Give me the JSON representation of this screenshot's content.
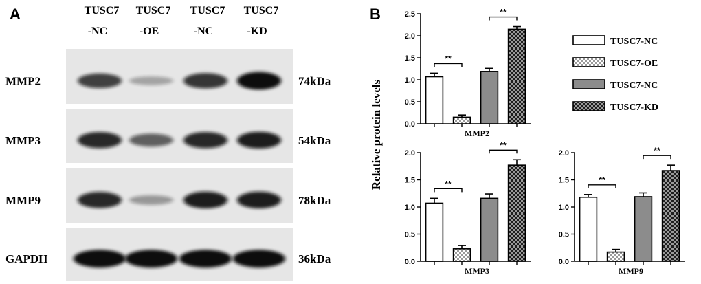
{
  "figure": {
    "panel_a_letter": "A",
    "panel_b_letter": "B"
  },
  "western_blot": {
    "lane_labels": [
      {
        "line1": "TUSC7",
        "line2": "-NC"
      },
      {
        "line1": "TUSC7",
        "line2": "-OE"
      },
      {
        "line1": "TUSC7",
        "line2": "-NC"
      },
      {
        "line1": "TUSC7",
        "line2": "-KD"
      }
    ],
    "rows": [
      {
        "protein": "MMP2",
        "size": "74kDa",
        "intensity": [
          0.72,
          0.18,
          0.78,
          1.0
        ]
      },
      {
        "protein": "MMP3",
        "size": "54kDa",
        "intensity": [
          0.85,
          0.55,
          0.85,
          0.9
        ]
      },
      {
        "protein": "MMP9",
        "size": "78kDa",
        "intensity": [
          0.85,
          0.25,
          0.9,
          0.9
        ]
      },
      {
        "protein": "GAPDH",
        "size": "36kDa",
        "intensity": [
          1.0,
          1.0,
          1.0,
          1.0
        ]
      }
    ]
  },
  "legend": {
    "entries": [
      {
        "label": "TUSC7-NC",
        "pattern": "white"
      },
      {
        "label": "TUSC7-OE",
        "pattern": "check-light"
      },
      {
        "label": "TUSC7-NC",
        "pattern": "gray"
      },
      {
        "label": "TUSC7-KD",
        "pattern": "check-dark"
      }
    ],
    "placement": "top-right"
  },
  "colors": {
    "gray_bar": "#8c8c8c",
    "check_light": "#b5b5b5",
    "check_dark": "#2b2b2b",
    "blot_background": "#e6e6e6",
    "band": "#111111"
  },
  "chart_data": [
    {
      "type": "bar",
      "title": "",
      "xlabel": "MMP2",
      "ylabel": "Relative protein levels",
      "categories": [
        "TUSC7-NC",
        "TUSC7-OE",
        "TUSC7-NC",
        "TUSC7-KD"
      ],
      "values": [
        1.07,
        0.15,
        1.19,
        2.15
      ],
      "errors": [
        0.08,
        0.05,
        0.07,
        0.06
      ],
      "ylim": [
        0,
        2.5
      ],
      "yticks": [
        "0.0",
        "0.5",
        "1.0",
        "1.5",
        "2.0",
        "2.5"
      ],
      "significance": [
        {
          "from": 0,
          "to": 1,
          "label": "**"
        },
        {
          "from": 2,
          "to": 3,
          "label": "**"
        }
      ],
      "grid": false
    },
    {
      "type": "bar",
      "title": "",
      "xlabel": "MMP3",
      "ylabel": "",
      "categories": [
        "TUSC7-NC",
        "TUSC7-OE",
        "TUSC7-NC",
        "TUSC7-KD"
      ],
      "values": [
        1.07,
        0.23,
        1.16,
        1.77
      ],
      "errors": [
        0.09,
        0.06,
        0.08,
        0.1
      ],
      "ylim": [
        0,
        2.0
      ],
      "yticks": [
        "0.0",
        "0.5",
        "1.0",
        "1.5",
        "2.0"
      ],
      "significance": [
        {
          "from": 0,
          "to": 1,
          "label": "**"
        },
        {
          "from": 2,
          "to": 3,
          "label": "**"
        }
      ],
      "grid": false
    },
    {
      "type": "bar",
      "title": "",
      "xlabel": "MMP9",
      "ylabel": "",
      "categories": [
        "TUSC7-NC",
        "TUSC7-OE",
        "TUSC7-NC",
        "TUSC7-KD"
      ],
      "values": [
        1.18,
        0.17,
        1.19,
        1.67
      ],
      "errors": [
        0.05,
        0.05,
        0.07,
        0.1
      ],
      "ylim": [
        0,
        2.0
      ],
      "yticks": [
        "0.0",
        "0.5",
        "1.0",
        "1.5",
        "2.0"
      ],
      "significance": [
        {
          "from": 0,
          "to": 1,
          "label": "**"
        },
        {
          "from": 2,
          "to": 3,
          "label": "**"
        }
      ],
      "grid": false
    }
  ]
}
